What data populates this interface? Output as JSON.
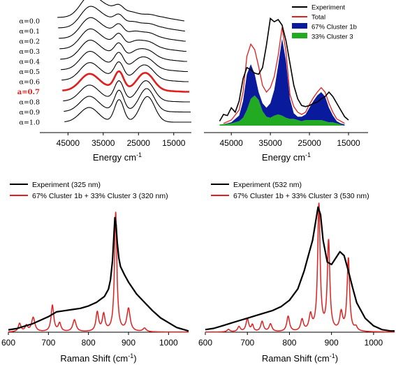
{
  "chart_data": [
    {
      "id": "stack",
      "type": "line",
      "xlabel": "Energy cm",
      "xlabel_sup": "-1",
      "xlim": [
        52000,
        10000
      ],
      "xticks": [
        45000,
        35000,
        25000,
        15000
      ],
      "highlight_color": "#e02020",
      "series": [
        {
          "label": "α=0.0",
          "alpha": 0.0,
          "highlight": false
        },
        {
          "label": "α=0.1",
          "alpha": 0.1,
          "highlight": false
        },
        {
          "label": "α=0.2",
          "alpha": 0.2,
          "highlight": false
        },
        {
          "label": "α=0.3",
          "alpha": 0.3,
          "highlight": false
        },
        {
          "label": "α=0.4",
          "alpha": 0.4,
          "highlight": false
        },
        {
          "label": "α=0.5",
          "alpha": 0.5,
          "highlight": false
        },
        {
          "label": "α=0.6",
          "alpha": 0.6,
          "highlight": false
        },
        {
          "label": "a=0.7",
          "alpha": 0.7,
          "highlight": true
        },
        {
          "label": "α=0.8",
          "alpha": 0.8,
          "highlight": false
        },
        {
          "label": "α=0.9",
          "alpha": 0.9,
          "highlight": false
        },
        {
          "label": "α=1.0",
          "alpha": 1.0,
          "highlight": false
        }
      ]
    },
    {
      "id": "absorption",
      "type": "area",
      "xlabel": "Energy cm",
      "xlabel_sup": "-1",
      "xlim": [
        52000,
        10000
      ],
      "ylim": [
        0,
        1
      ],
      "xticks": [
        45000,
        35000,
        25000,
        15000
      ],
      "legend_position": "top-right",
      "series": [
        {
          "name": "Experiment",
          "color": "#000000",
          "style": "line",
          "x": [
            48000,
            47000,
            46000,
            45000,
            44000,
            43000,
            42000,
            41000,
            40000,
            39000,
            38000,
            37000,
            36000,
            35000,
            34000,
            33000,
            32000,
            31000,
            30000,
            29000,
            28000,
            27000,
            26000,
            25000,
            24000,
            23000,
            22000,
            21000,
            20000,
            19000,
            18000,
            17000,
            16000,
            15000
          ],
          "y": [
            0.04,
            0.1,
            0.09,
            0.16,
            0.12,
            0.22,
            0.42,
            0.52,
            0.5,
            0.47,
            0.46,
            0.52,
            0.72,
            0.96,
            0.93,
            0.95,
            0.9,
            0.76,
            0.56,
            0.36,
            0.24,
            0.18,
            0.17,
            0.18,
            0.2,
            0.21,
            0.24,
            0.26,
            0.3,
            0.26,
            0.2,
            0.14,
            0.08,
            0.05
          ]
        },
        {
          "name": "Total",
          "color": "#e02020",
          "style": "line",
          "x": [
            47000,
            45000,
            43000,
            42000,
            41000,
            40000,
            39000,
            38000,
            37000,
            36000,
            35000,
            34000,
            33000,
            32000,
            31000,
            30000,
            29000,
            28000,
            27000,
            26000,
            25000,
            24000,
            23000,
            22000,
            21000,
            20000,
            19000,
            18000,
            17000,
            16000
          ],
          "y": [
            0.02,
            0.05,
            0.14,
            0.3,
            0.62,
            0.73,
            0.68,
            0.53,
            0.36,
            0.3,
            0.34,
            0.44,
            0.63,
            0.88,
            0.66,
            0.28,
            0.17,
            0.12,
            0.1,
            0.12,
            0.19,
            0.25,
            0.3,
            0.34,
            0.3,
            0.2,
            0.12,
            0.06,
            0.04,
            0.02
          ]
        },
        {
          "name": "67% Cluster 1b",
          "color": "#0a1a9c",
          "style": "fill",
          "x": [
            47000,
            45000,
            43000,
            42000,
            41000,
            40000,
            39000,
            38000,
            37000,
            36000,
            35000,
            34000,
            33000,
            32000,
            31000,
            30000,
            29000,
            28000,
            27000,
            26000,
            25000,
            24000,
            23000,
            22000,
            21000,
            20000,
            19000,
            18000,
            17000,
            16000
          ],
          "y": [
            0.01,
            0.03,
            0.09,
            0.22,
            0.46,
            0.55,
            0.46,
            0.3,
            0.2,
            0.16,
            0.2,
            0.32,
            0.54,
            0.78,
            0.58,
            0.24,
            0.11,
            0.08,
            0.08,
            0.1,
            0.16,
            0.22,
            0.27,
            0.3,
            0.26,
            0.16,
            0.09,
            0.04,
            0.02,
            0.01
          ]
        },
        {
          "name": "33% Cluster 3",
          "color": "#22aa22",
          "style": "fill",
          "x": [
            48000,
            45000,
            43000,
            42000,
            41000,
            40000,
            39000,
            38000,
            37000,
            36000,
            35000,
            34000,
            33000,
            32000,
            31000,
            30000,
            29000,
            28000,
            27000,
            26000,
            25000,
            24000,
            23000,
            22000,
            21000,
            20000,
            19000,
            18000,
            17000,
            16000
          ],
          "y": [
            0.01,
            0.02,
            0.04,
            0.07,
            0.14,
            0.24,
            0.27,
            0.23,
            0.13,
            0.08,
            0.07,
            0.09,
            0.1,
            0.09,
            0.07,
            0.06,
            0.06,
            0.05,
            0.04,
            0.05,
            0.05,
            0.05,
            0.05,
            0.05,
            0.04,
            0.03,
            0.03,
            0.02,
            0.01,
            0.0
          ]
        }
      ]
    },
    {
      "id": "raman325",
      "type": "line",
      "xlabel": "Raman Shift (cm",
      "xlabel_sup": "-1",
      "xlabel_end": ")",
      "xlim": [
        600,
        1050
      ],
      "ylim": [
        0,
        1
      ],
      "xticks": [
        600,
        700,
        800,
        900,
        1000
      ],
      "legend_position": "top-left",
      "series": [
        {
          "name": "Experiment (325 nm)",
          "color": "#000000",
          "x": [
            600,
            620,
            640,
            660,
            680,
            700,
            720,
            740,
            760,
            780,
            800,
            820,
            840,
            850,
            855,
            860,
            863,
            866,
            869,
            872,
            876,
            880,
            890,
            900,
            920,
            940,
            960,
            980,
            1000,
            1020,
            1040,
            1050
          ],
          "y": [
            0.02,
            0.03,
            0.05,
            0.07,
            0.1,
            0.13,
            0.17,
            0.18,
            0.19,
            0.2,
            0.22,
            0.25,
            0.3,
            0.36,
            0.44,
            0.6,
            0.78,
            0.96,
            0.9,
            0.75,
            0.62,
            0.55,
            0.48,
            0.42,
            0.32,
            0.25,
            0.18,
            0.12,
            0.08,
            0.04,
            0.02,
            0.01
          ]
        },
        {
          "name": "67% Cluster 1b + 33% Cluster 3 (320 nm)",
          "color": "#e02020",
          "peaks": [
            [
              628,
              0.07,
              4
            ],
            [
              645,
              0.05,
              4
            ],
            [
              662,
              0.12,
              5
            ],
            [
              710,
              0.22,
              4
            ],
            [
              728,
              0.07,
              4
            ],
            [
              765,
              0.1,
              5
            ],
            [
              822,
              0.16,
              4
            ],
            [
              838,
              0.14,
              4
            ],
            [
              868,
              1.0,
              3.5
            ],
            [
              900,
              0.19,
              5
            ],
            [
              940,
              0.03,
              5
            ]
          ]
        }
      ]
    },
    {
      "id": "raman532",
      "type": "line",
      "xlabel": "Raman Shift (cm",
      "xlabel_sup": "-1",
      "xlabel_end": ")",
      "xlim": [
        600,
        1050
      ],
      "ylim": [
        0,
        1
      ],
      "xticks": [
        600,
        700,
        800,
        900,
        1000
      ],
      "legend_position": "top-left",
      "series": [
        {
          "name": "Experiment (532 nm)",
          "color": "#000000",
          "x": [
            600,
            620,
            640,
            660,
            680,
            700,
            720,
            740,
            760,
            780,
            800,
            820,
            835,
            845,
            855,
            862,
            868,
            874,
            880,
            890,
            900,
            910,
            920,
            930,
            940,
            950,
            960,
            980,
            1000,
            1020,
            1040,
            1050
          ],
          "y": [
            0.02,
            0.03,
            0.05,
            0.07,
            0.09,
            0.11,
            0.13,
            0.15,
            0.17,
            0.2,
            0.25,
            0.34,
            0.48,
            0.6,
            0.72,
            0.86,
            0.98,
            0.92,
            0.72,
            0.55,
            0.53,
            0.58,
            0.63,
            0.6,
            0.48,
            0.35,
            0.23,
            0.11,
            0.05,
            0.02,
            0.01,
            0.01
          ]
        },
        {
          "name": "67% Cluster 1b + 33% Cluster 3 (530 nm)",
          "color": "#e02020",
          "peaks": [
            [
              655,
              0.02,
              4
            ],
            [
              680,
              0.04,
              4
            ],
            [
              700,
              0.1,
              4
            ],
            [
              712,
              0.05,
              3
            ],
            [
              735,
              0.08,
              4
            ],
            [
              755,
              0.06,
              4
            ],
            [
              797,
              0.12,
              4
            ],
            [
              830,
              0.09,
              4
            ],
            [
              850,
              0.12,
              4
            ],
            [
              870,
              0.99,
              3.5
            ],
            [
              893,
              0.7,
              3.5
            ],
            [
              923,
              0.14,
              4
            ],
            [
              940,
              0.57,
              3.5
            ],
            [
              958,
              0.03,
              4
            ]
          ]
        }
      ]
    }
  ]
}
